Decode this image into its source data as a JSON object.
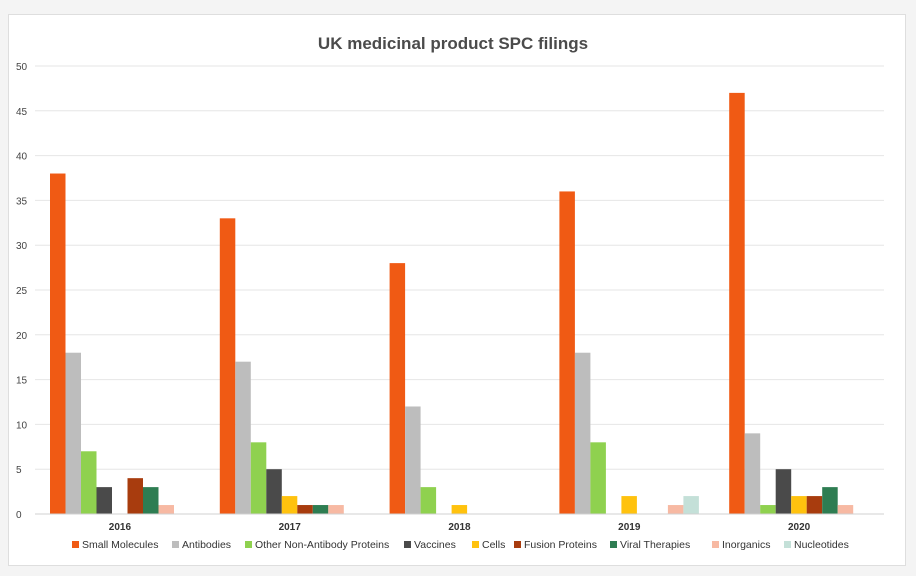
{
  "chart_data": {
    "type": "bar",
    "title": "UK medicinal product SPC filings",
    "categories": [
      "2016",
      "2017",
      "2018",
      "2019",
      "2020"
    ],
    "ylim": [
      0,
      50
    ],
    "yticks": [
      0,
      5,
      10,
      15,
      20,
      25,
      30,
      35,
      40,
      45,
      50
    ],
    "grid": true,
    "legend_position": "bottom",
    "series": [
      {
        "name": "Small Molecules",
        "color": "#f05a14",
        "values": [
          38,
          33,
          28,
          36,
          47
        ]
      },
      {
        "name": "Antibodies",
        "color": "#bdbdbd",
        "values": [
          18,
          17,
          12,
          18,
          9
        ]
      },
      {
        "name": "Other Non-Antibody Proteins",
        "color": "#8fd14f",
        "values": [
          7,
          8,
          3,
          8,
          1
        ]
      },
      {
        "name": "Vaccines",
        "color": "#4a4a4a",
        "values": [
          3,
          5,
          0,
          0,
          5
        ]
      },
      {
        "name": "Cells",
        "color": "#ffc20e",
        "values": [
          0,
          2,
          1,
          2,
          2
        ]
      },
      {
        "name": "Fusion Proteins",
        "color": "#a83c0e",
        "values": [
          4,
          1,
          0,
          0,
          2
        ]
      },
      {
        "name": "Viral Therapies",
        "color": "#2e7d52",
        "values": [
          3,
          1,
          0,
          0,
          3
        ]
      },
      {
        "name": "Inorganics",
        "color": "#f7b9a3",
        "values": [
          1,
          1,
          0,
          1,
          1
        ]
      },
      {
        "name": "Nucleotides",
        "color": "#c4e0d8",
        "values": [
          0,
          0,
          0,
          2,
          0
        ]
      }
    ]
  }
}
